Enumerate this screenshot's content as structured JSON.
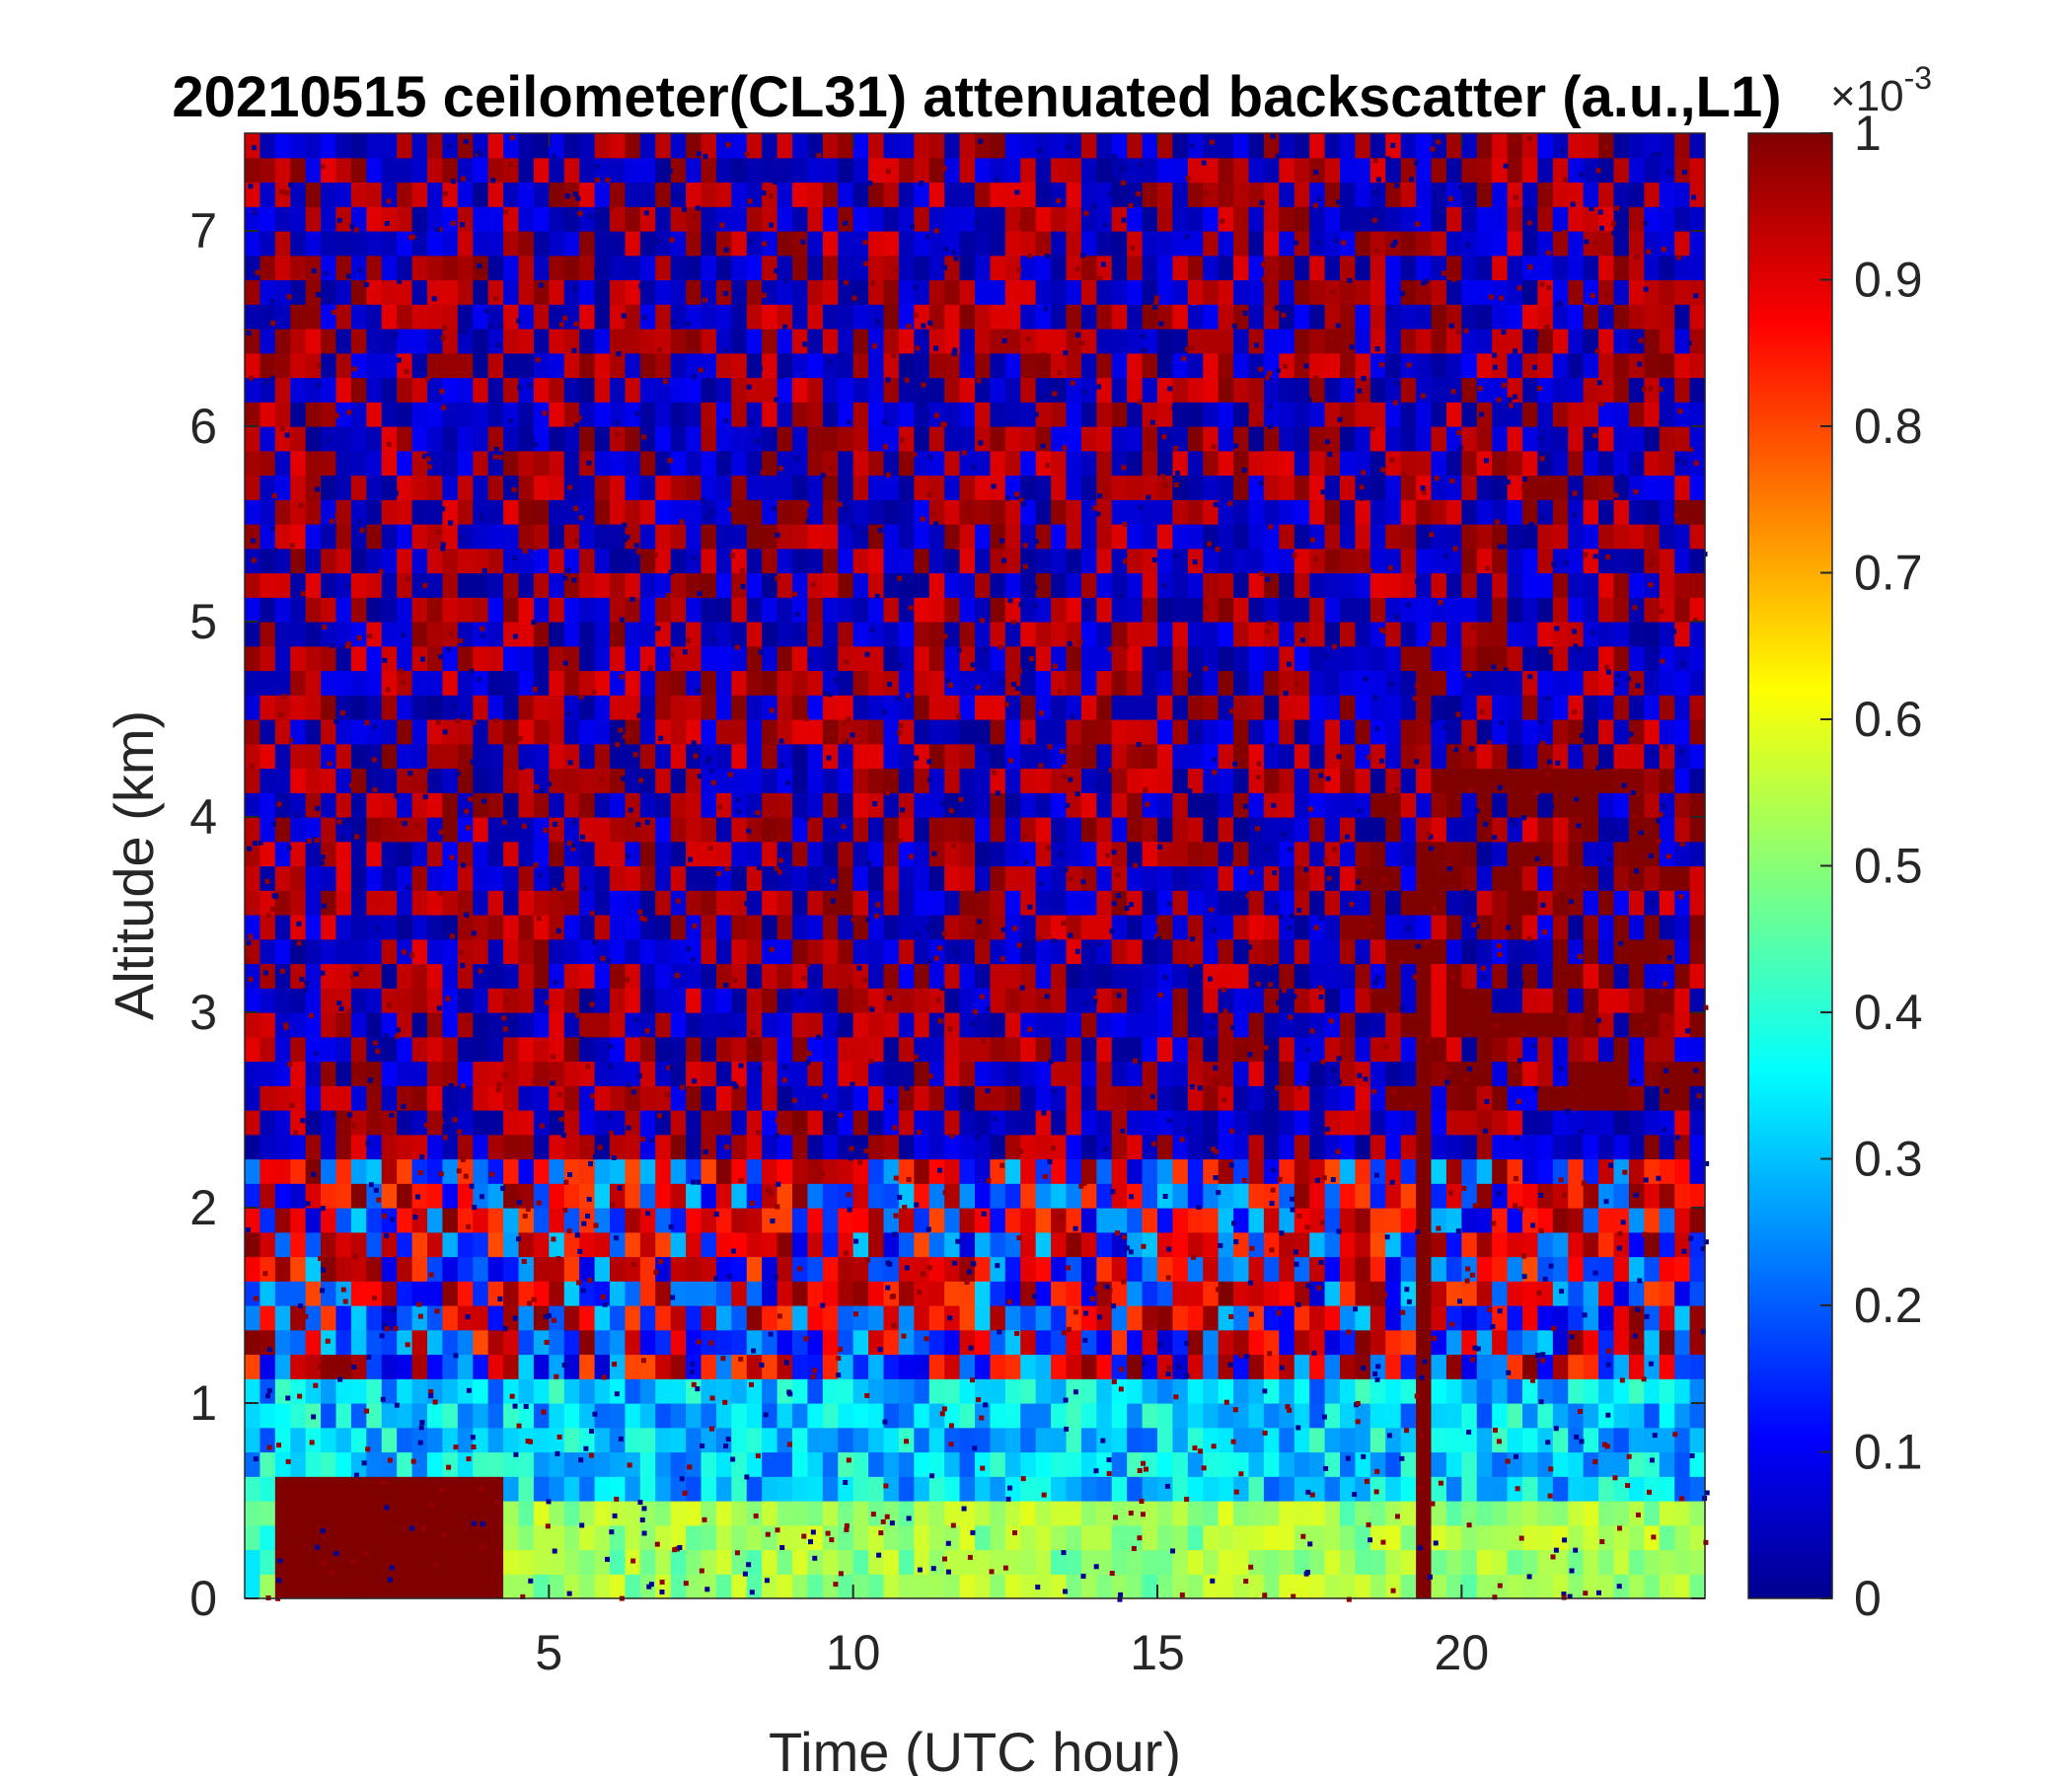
{
  "chart_data": {
    "type": "heatmap",
    "title": "20210515 ceilometer(CL31) attenuated backscatter (a.u.,L1)",
    "xlabel": "Time (UTC hour)",
    "ylabel": "Altitude (km)",
    "xlim": [
      0,
      24
    ],
    "ylim": [
      0,
      7.5
    ],
    "x_ticks": [
      5,
      10,
      15,
      20
    ],
    "y_ticks": [
      0,
      1,
      2,
      3,
      4,
      5,
      6,
      7
    ],
    "colorbar": {
      "colormap": "jet",
      "clim": [
        0,
        0.001
      ],
      "ticks": [
        0,
        0.1,
        0.2,
        0.3,
        0.4,
        0.5,
        0.6,
        0.7,
        0.8,
        0.9,
        1
      ],
      "tick_labels": [
        "0",
        "0.1",
        "0.2",
        "0.3",
        "0.4",
        "0.5",
        "0.6",
        "0.7",
        "0.8",
        "0.9",
        "1"
      ],
      "exponent_label": "×10",
      "exponent": "-3"
    },
    "features": [
      {
        "time_range_h": [
          0.5,
          4.2
        ],
        "altitude_range_km": [
          0,
          0.6
        ],
        "value": 1.0
      },
      {
        "time_range_h": [
          4.2,
          24
        ],
        "altitude_range_km": [
          0,
          0.5
        ],
        "value": 0.45
      },
      {
        "time_range_h": [
          19.2,
          19.6
        ],
        "altitude_range_km": [
          0,
          3.0
        ],
        "value": 1.0
      },
      {
        "time_range_h": [
          18.5,
          24
        ],
        "altitude_range_km": [
          2.5,
          4.3
        ],
        "value": 1.0
      }
    ]
  }
}
